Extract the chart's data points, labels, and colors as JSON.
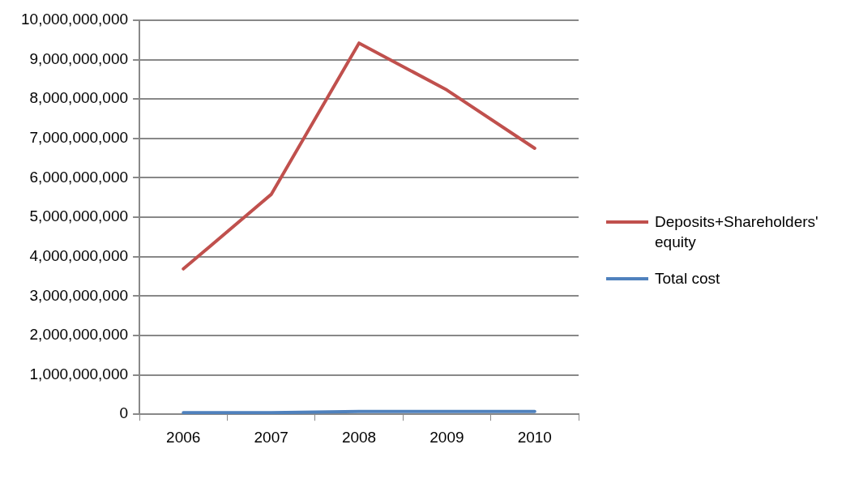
{
  "chart_data": {
    "type": "line",
    "categories": [
      "2006",
      "2007",
      "2008",
      "2009",
      "2010"
    ],
    "series": [
      {
        "name": "Deposits+Shareholders' equity",
        "color": "#c0504d",
        "values": [
          3690000000,
          5580000000,
          9420000000,
          8230000000,
          6750000000
        ]
      },
      {
        "name": "Total cost",
        "color": "#4f81bd",
        "values": [
          40000000,
          40000000,
          70000000,
          70000000,
          70000000
        ]
      }
    ],
    "ylim": [
      0,
      10000000000
    ],
    "yticks": [
      0,
      {
        "value": 1000000000,
        "label": "1,000,000,000"
      },
      {
        "value": 2000000000,
        "label": "2,000,000,000"
      },
      {
        "value": 3000000000,
        "label": "3,000,000,000"
      },
      {
        "value": 4000000000,
        "label": "4,000,000,000"
      },
      {
        "value": 5000000000,
        "label": "5,000,000,000"
      },
      {
        "value": 6000000000,
        "label": "6,000,000,000"
      },
      {
        "value": 7000000000,
        "label": "7,000,000,000"
      },
      {
        "value": 8000000000,
        "label": "8,000,000,000"
      },
      {
        "value": 9000000000,
        "label": "9,000,000,000"
      },
      {
        "value": 10000000000,
        "label": "10,000,000,000"
      }
    ],
    "grid": "y",
    "legend": "right",
    "marker": "none",
    "line_style": "solid"
  }
}
